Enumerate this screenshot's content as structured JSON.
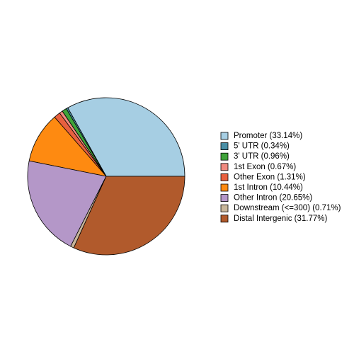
{
  "chart_data": {
    "type": "pie",
    "categories": [
      "Promoter (33.14%)",
      "5' UTR (0.34%)",
      "3' UTR (0.96%)",
      "1st Exon (0.67%)",
      "Other Exon (1.31%)",
      "1st Intron (10.44%)",
      "Other Intron (20.65%)",
      "Downstream (<=300) (0.71%)",
      "Distal Intergenic (31.77%)"
    ],
    "values": [
      33.14,
      0.34,
      0.96,
      0.67,
      1.31,
      10.44,
      20.65,
      0.71,
      31.77
    ],
    "colors": [
      "#a6cee3",
      "#4a8fa6",
      "#3fa33a",
      "#f08a80",
      "#e8603f",
      "#fe8a11",
      "#b497c8",
      "#c8b69b",
      "#b15a2c"
    ],
    "legend": "right"
  }
}
